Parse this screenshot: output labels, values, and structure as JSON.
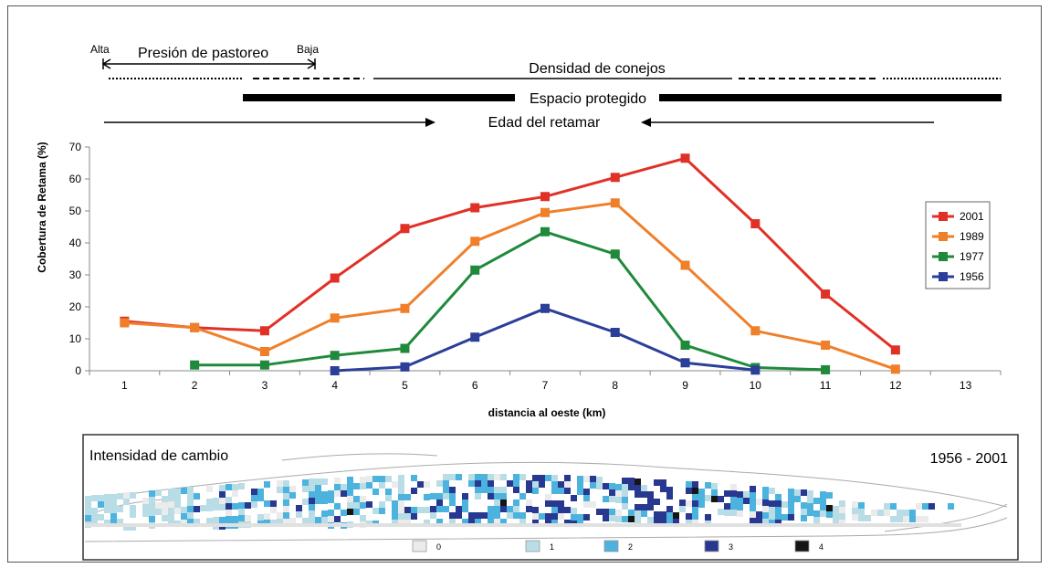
{
  "header": {
    "grazing": {
      "label": "Presión de pastoreo",
      "left": "Alta",
      "right": "Baja"
    },
    "rabbits": {
      "label": "Densidad de conejos"
    },
    "protected": {
      "label": "Espacio protegido"
    },
    "age": {
      "label": "Edad del retamar"
    }
  },
  "chart_data": {
    "type": "line",
    "xlabel": "distancia al oeste (km)",
    "ylabel": "Cobertura de Retama (%)",
    "xlim": [
      0.5,
      13.5
    ],
    "ylim": [
      0,
      70
    ],
    "x_ticks": [
      1,
      2,
      3,
      4,
      5,
      6,
      7,
      8,
      9,
      10,
      11,
      12,
      13
    ],
    "y_ticks": [
      0,
      10,
      20,
      30,
      40,
      50,
      60,
      70
    ],
    "grid": false,
    "legend_position": "right",
    "series": [
      {
        "name": "2001",
        "color": "#e03127",
        "points": [
          [
            1,
            15.5
          ],
          [
            2,
            13.5
          ],
          [
            3,
            12.5
          ],
          [
            4,
            29
          ],
          [
            5,
            44.5
          ],
          [
            6,
            51
          ],
          [
            7,
            54.5
          ],
          [
            8,
            60.5
          ],
          [
            9,
            66.5
          ],
          [
            10,
            46
          ],
          [
            11,
            24
          ],
          [
            12,
            6.5
          ]
        ]
      },
      {
        "name": "1989",
        "color": "#f07f2a",
        "points": [
          [
            1,
            15
          ],
          [
            2,
            13.5
          ],
          [
            3,
            6
          ],
          [
            4,
            16.5
          ],
          [
            5,
            19.5
          ],
          [
            6,
            40.5
          ],
          [
            7,
            49.5
          ],
          [
            8,
            52.5
          ],
          [
            9,
            33
          ],
          [
            10,
            12.5
          ],
          [
            11,
            8
          ],
          [
            12,
            0.5
          ]
        ]
      },
      {
        "name": "1977",
        "color": "#1f8a3b",
        "points": [
          [
            2,
            1.8
          ],
          [
            3,
            1.8
          ],
          [
            4,
            4.8
          ],
          [
            5,
            7
          ],
          [
            6,
            31.5
          ],
          [
            7,
            43.5
          ],
          [
            8,
            36.5
          ],
          [
            9,
            8
          ],
          [
            10,
            1
          ],
          [
            11,
            0.3
          ]
        ]
      },
      {
        "name": "1956",
        "color": "#2b3f99",
        "points": [
          [
            4,
            0
          ],
          [
            5,
            1.2
          ],
          [
            6,
            10.5
          ],
          [
            7,
            19.5
          ],
          [
            8,
            12
          ],
          [
            9,
            2.5
          ],
          [
            10,
            0.2
          ]
        ]
      }
    ]
  },
  "map": {
    "title": "Intensidad de cambio",
    "period": "1956 - 2001",
    "legend": [
      {
        "label": "0",
        "color": "#ebebeb"
      },
      {
        "label": "1",
        "color": "#b9dde6"
      },
      {
        "label": "2",
        "color": "#4bb3dd"
      },
      {
        "label": "3",
        "color": "#28378f"
      },
      {
        "label": "4",
        "color": "#151515"
      }
    ]
  }
}
